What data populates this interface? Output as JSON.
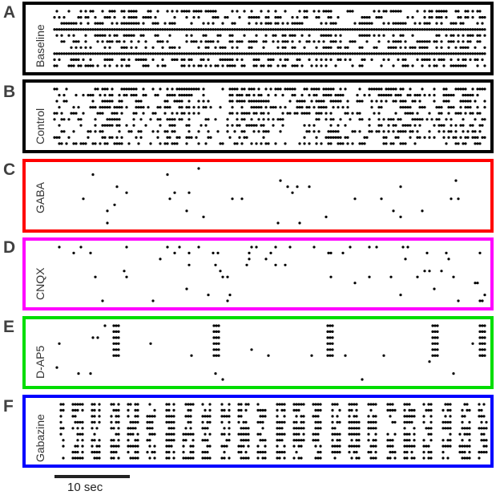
{
  "panels": [
    {
      "letter": "A",
      "label": "Baseline",
      "color": "#000000",
      "pattern": "dense_rows",
      "rows": 10
    },
    {
      "letter": "B",
      "label": "Control",
      "color": "#000000",
      "pattern": "dense_bursts",
      "rows": 10
    },
    {
      "letter": "C",
      "label": "GABA",
      "color": "#ff0000",
      "pattern": "sparse",
      "rows": 10
    },
    {
      "letter": "D",
      "label": "CNQX",
      "color": "#ff00ff",
      "pattern": "sparse_mid",
      "rows": 10
    },
    {
      "letter": "E",
      "label": "D-AP5",
      "color": "#00dd00",
      "pattern": "bursts",
      "rows": 10
    },
    {
      "letter": "F",
      "label": "Gabazine",
      "color": "#0000ff",
      "pattern": "periodic",
      "rows": 10
    }
  ],
  "scalebar": {
    "label": "10 sec"
  }
}
